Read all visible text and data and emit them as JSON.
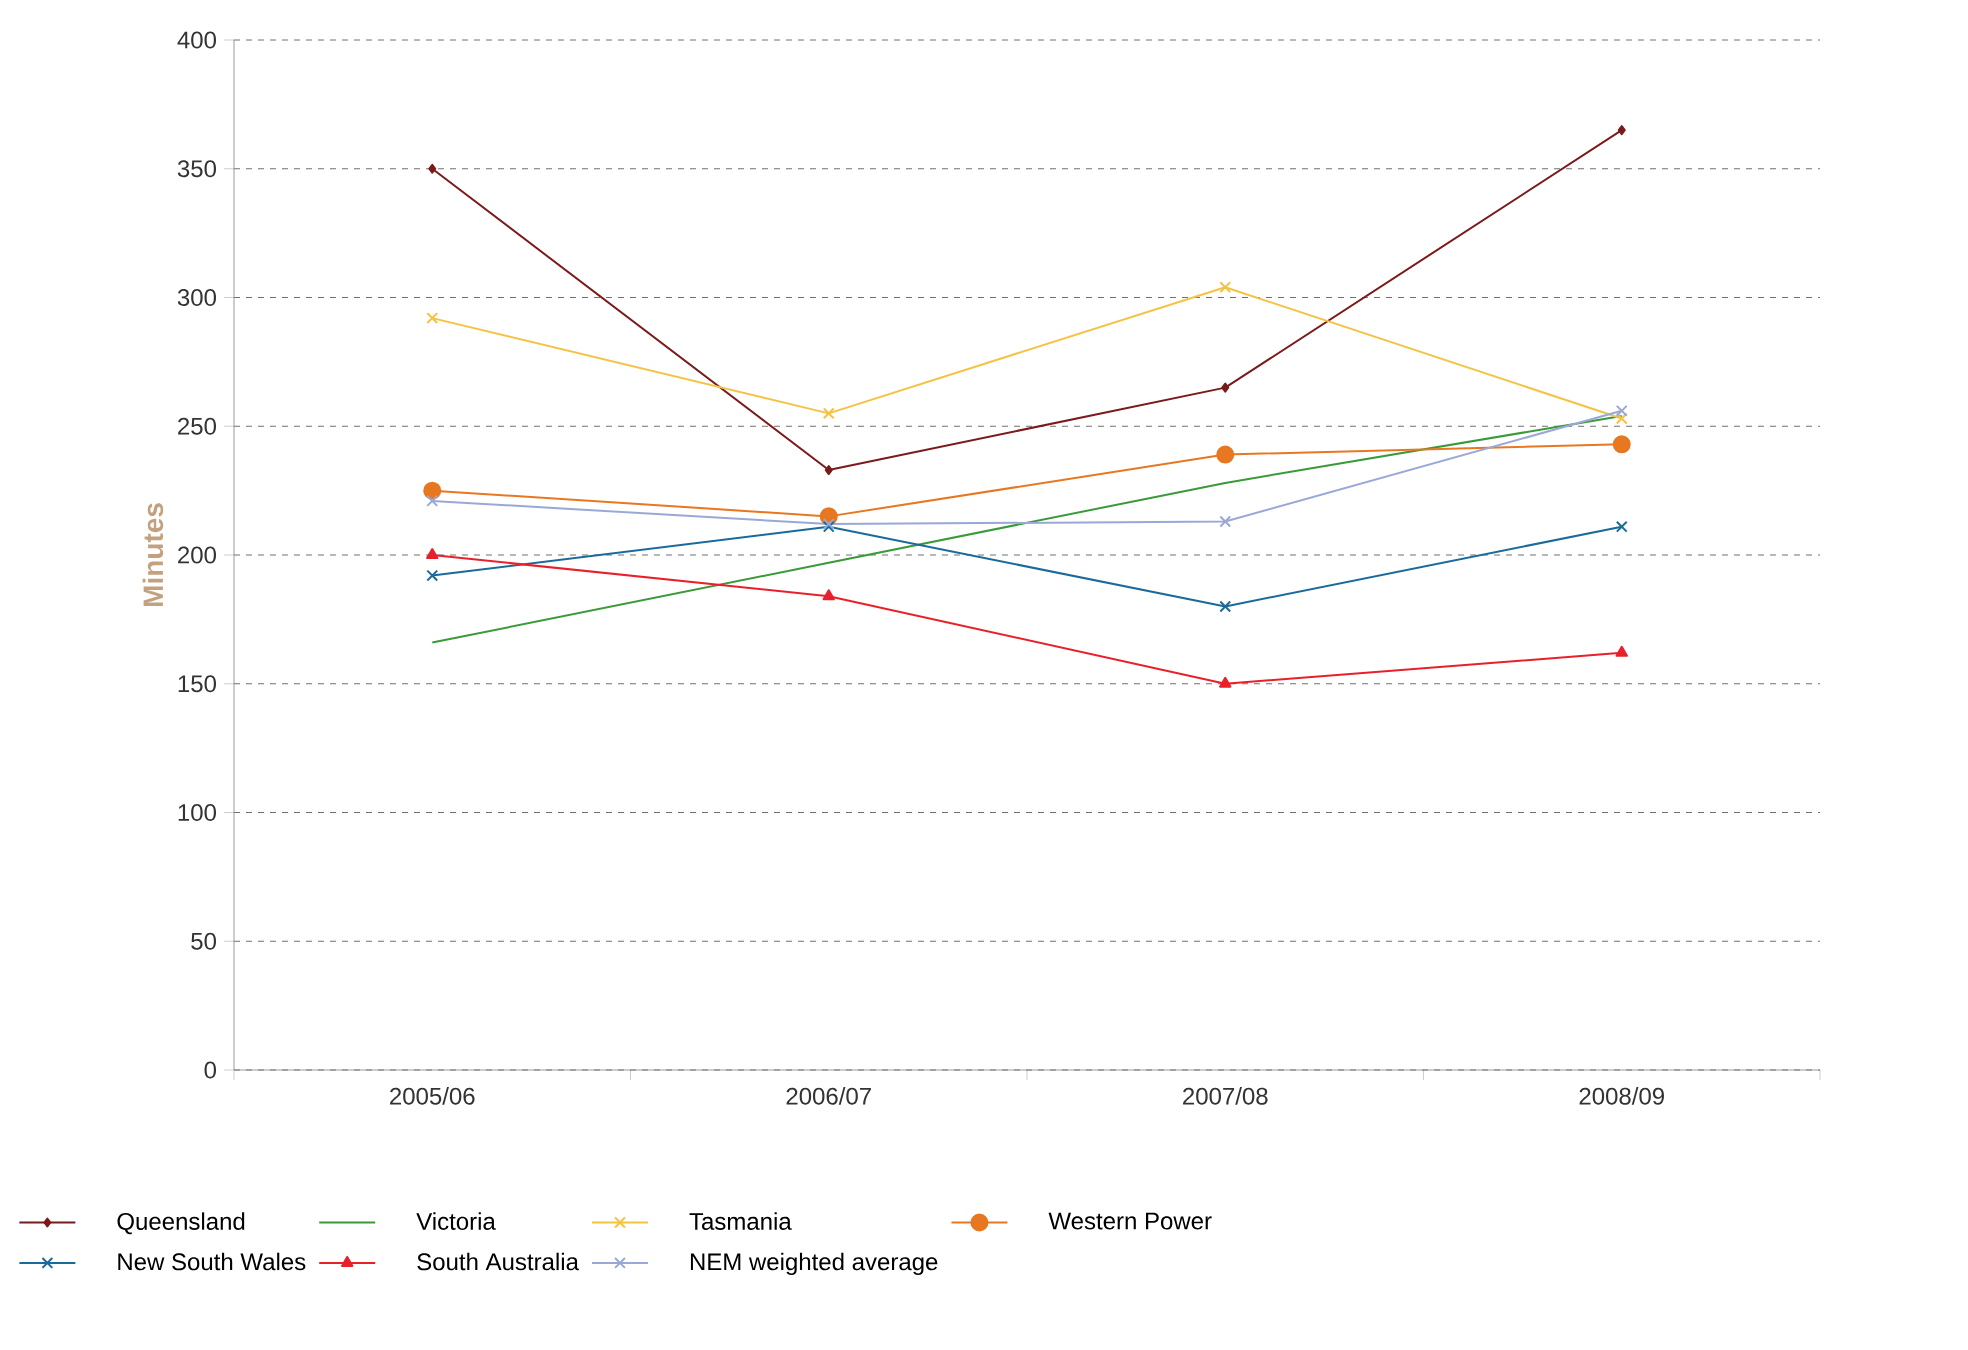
{
  "chart_data": {
    "type": "line",
    "ylabel": "Minutes",
    "categories": [
      "2005/06",
      "2006/07",
      "2007/08",
      "2008/09"
    ],
    "ylim": [
      0,
      400
    ],
    "yticks": [
      0,
      50,
      100,
      150,
      200,
      250,
      300,
      350,
      400
    ],
    "grid": "y",
    "legend": "bottom",
    "series": [
      {
        "name": "Queensland",
        "color": "#7b1a1a",
        "marker": "diamond",
        "values": [
          350,
          233,
          265,
          365
        ]
      },
      {
        "name": "Victoria",
        "color": "#3a9a3a",
        "marker": "none",
        "values": [
          166,
          197,
          228,
          254
        ]
      },
      {
        "name": "Tasmania",
        "color": "#f5c242",
        "marker": "cross",
        "values": [
          292,
          255,
          304,
          253
        ]
      },
      {
        "name": "Western Power",
        "color": "#e87722",
        "marker": "circle",
        "values": [
          225,
          215,
          239,
          243
        ]
      },
      {
        "name": "New South Wales",
        "color": "#1a6a9a",
        "marker": "cross",
        "values": [
          192,
          211,
          180,
          211
        ]
      },
      {
        "name": "South Australia",
        "color": "#e8202a",
        "marker": "triangle",
        "values": [
          200,
          184,
          150,
          162
        ]
      },
      {
        "name": "NEM weighted average",
        "color": "#9aa8d8",
        "marker": "cross",
        "values": [
          221,
          212,
          213,
          256
        ]
      }
    ]
  }
}
